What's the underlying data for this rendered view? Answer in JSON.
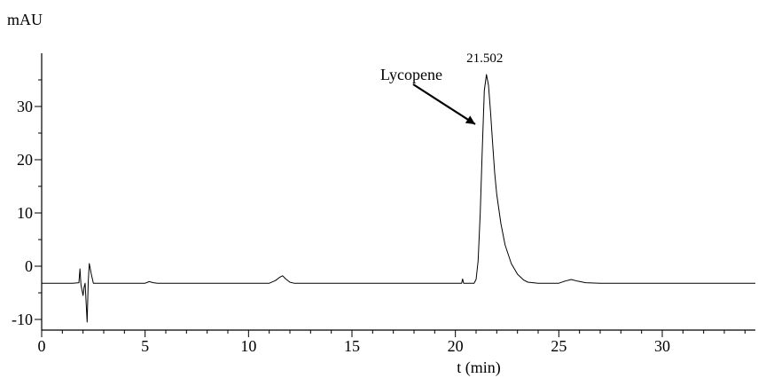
{
  "chart_data": {
    "type": "line",
    "title": "",
    "xlabel": "t (min)",
    "ylabel": "mAU",
    "xlim": [
      0,
      34.5
    ],
    "ylim": [
      -12,
      40
    ],
    "x_ticks": [
      0,
      5,
      10,
      15,
      20,
      25,
      30
    ],
    "y_ticks": [
      -10,
      0,
      10,
      20,
      30
    ],
    "grid": false,
    "legend": "none",
    "series": [
      {
        "name": "",
        "x": [
          0,
          1.5,
          1.8,
          1.85,
          1.9,
          2.0,
          2.05,
          2.1,
          2.15,
          2.2,
          2.25,
          2.3,
          2.4,
          2.5,
          3.0,
          5.0,
          5.2,
          5.4,
          5.6,
          6.0,
          11.0,
          11.3,
          11.5,
          11.65,
          11.8,
          12.0,
          12.2,
          15.0,
          20.3,
          20.35,
          20.4,
          20.9,
          21.0,
          21.1,
          21.2,
          21.3,
          21.4,
          21.502,
          21.6,
          21.7,
          21.8,
          21.9,
          22.0,
          22.2,
          22.4,
          22.7,
          23.0,
          23.3,
          23.5,
          24.0,
          25.0,
          25.3,
          25.6,
          25.9,
          26.3,
          27.0,
          30.0,
          34.5
        ],
        "y": [
          -3.2,
          -3.2,
          -3.1,
          -0.5,
          -3.5,
          -5.5,
          -4.0,
          -3.2,
          -7.0,
          -10.5,
          -3.0,
          0.5,
          -1.5,
          -3.2,
          -3.2,
          -3.2,
          -2.9,
          -3.1,
          -3.2,
          -3.2,
          -3.2,
          -2.7,
          -2.1,
          -1.8,
          -2.4,
          -3.0,
          -3.2,
          -3.2,
          -3.2,
          -2.4,
          -3.2,
          -3.2,
          -2.5,
          1.0,
          10.0,
          22.0,
          33.0,
          36.0,
          34.0,
          29.0,
          23.0,
          17.5,
          13.5,
          8.0,
          4.0,
          0.5,
          -1.5,
          -2.6,
          -3.0,
          -3.2,
          -3.2,
          -2.8,
          -2.5,
          -2.8,
          -3.1,
          -3.2,
          -3.2,
          -3.2
        ]
      }
    ],
    "annotations": [
      {
        "text": "Lycopene",
        "x": 21.3,
        "y": 27
      },
      {
        "text": "21.502",
        "x": 21.502,
        "y": 36.0
      }
    ]
  }
}
